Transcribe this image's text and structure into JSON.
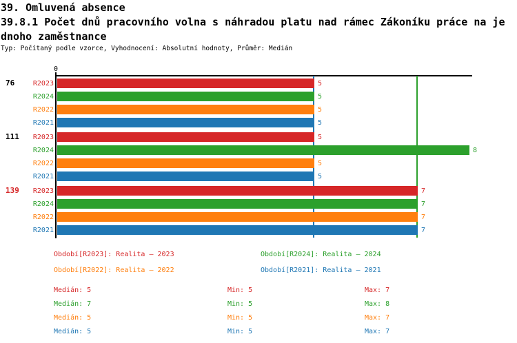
{
  "header": {
    "title_line1": "39. Omluvená absence",
    "title_line2": "39.8.1 Počet dnů pracovního volna s náhradou platu nad rámec Zákoníku práce na je",
    "title_line3": "dnoho zaměstnance",
    "subtitle": "Typ: Počítaný podle vzorce, Vyhodnocení: Absolutní hodnoty, Průměr: Medián"
  },
  "chart_data": {
    "type": "bar",
    "orientation": "horizontal",
    "title": "39.8.1 Počet dnů pracovního volna s náhradou platu nad rámec Zákoníku práce na jednoho zaměstnance",
    "xlim": [
      0,
      8
    ],
    "origin_tick_label": "0",
    "grid": false,
    "series_order": [
      "R2023",
      "R2024",
      "R2022",
      "R2021"
    ],
    "series_colors": {
      "R2023": "#d62728",
      "R2024": "#2ca02c",
      "R2022": "#ff7f0e",
      "R2021": "#1f77b4"
    },
    "groups": [
      {
        "label": "76",
        "label_color": "#000000",
        "values": {
          "R2023": 5,
          "R2024": 5,
          "R2022": 5,
          "R2021": 5
        }
      },
      {
        "label": "111",
        "label_color": "#000000",
        "values": {
          "R2023": 5,
          "R2024": 8,
          "R2022": 5,
          "R2021": 5
        }
      },
      {
        "label": "139",
        "label_color": "#d62728",
        "values": {
          "R2023": 7,
          "R2024": 7,
          "R2022": 7,
          "R2021": 7
        }
      }
    ],
    "reference_lines": [
      {
        "name": "median-r2021",
        "value": 5,
        "color": "#1f77b4"
      },
      {
        "name": "median-r2024",
        "value": 7,
        "color": "#2ca02c"
      }
    ]
  },
  "legend": {
    "items": [
      {
        "series": "R2023",
        "label": "Období[R2023]: Realita – 2023",
        "color": "#d62728"
      },
      {
        "series": "R2024",
        "label": "Období[R2024]: Realita – 2024",
        "color": "#2ca02c"
      },
      {
        "series": "R2022",
        "label": "Období[R2022]: Realita – 2022",
        "color": "#ff7f0e"
      },
      {
        "series": "R2021",
        "label": "Období[R2021]: Realita – 2021",
        "color": "#1f77b4"
      }
    ]
  },
  "stats": {
    "rows": [
      {
        "series": "R2023",
        "color": "#d62728",
        "median": "Medián: 5",
        "min": "Min: 5",
        "max": "Max: 7"
      },
      {
        "series": "R2024",
        "color": "#2ca02c",
        "median": "Medián: 7",
        "min": "Min: 5",
        "max": "Max: 8"
      },
      {
        "series": "R2022",
        "color": "#ff7f0e",
        "median": "Medián: 5",
        "min": "Min: 5",
        "max": "Max: 7"
      },
      {
        "series": "R2021",
        "color": "#1f77b4",
        "median": "Medián: 5",
        "min": "Min: 5",
        "max": "Max: 7"
      }
    ]
  }
}
